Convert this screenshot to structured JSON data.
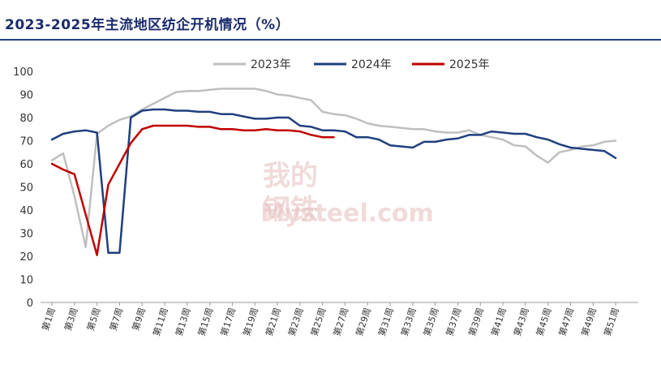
{
  "title": "2023-2025年主流地区纺企开机情况（%）",
  "chart_data": {
    "type": "line",
    "title": "2023-2025年主流地区纺企开机情况（%）",
    "xlabel": "",
    "ylabel": "",
    "ylim": [
      0,
      100
    ],
    "yticks": [
      0,
      10,
      20,
      30,
      40,
      50,
      60,
      70,
      80,
      90,
      100
    ],
    "legend_position": "top-center",
    "grid": false,
    "categories": [
      "第1周",
      "第2周",
      "第3周",
      "第4周",
      "第5周",
      "第6周",
      "第7周",
      "第8周",
      "第9周",
      "第10周",
      "第11周",
      "第12周",
      "第13周",
      "第14周",
      "第15周",
      "第16周",
      "第17周",
      "第18周",
      "第19周",
      "第20周",
      "第21周",
      "第22周",
      "第23周",
      "第24周",
      "第25周",
      "第26周",
      "第27周",
      "第28周",
      "第29周",
      "第30周",
      "第31周",
      "第32周",
      "第33周",
      "第34周",
      "第35周",
      "第36周",
      "第37周",
      "第38周",
      "第39周",
      "第40周",
      "第41周",
      "第42周",
      "第43周",
      "第44周",
      "第45周",
      "第46周",
      "第47周",
      "第48周",
      "第49周",
      "第50周",
      "第51周",
      "第52周"
    ],
    "xtick_labels": [
      "第1周",
      "第3周",
      "第5周",
      "第7周",
      "第9周",
      "第11周",
      "第13周",
      "第15周",
      "第17周",
      "第19周",
      "第21周",
      "第23周",
      "第25周",
      "第27周",
      "第29周",
      "第31周",
      "第33周",
      "第35周",
      "第37周",
      "第39周",
      "第41周",
      "第43周",
      "第45周",
      "第47周",
      "第49周",
      "第51周"
    ],
    "series": [
      {
        "name": "2023年",
        "color": "#bfbfbf",
        "values": [
          61.5,
          64.5,
          46,
          24,
          73,
          76.5,
          79,
          80.5,
          83.5,
          86,
          88.5,
          91,
          91.5,
          91.5,
          92,
          92.5,
          92.5,
          92.5,
          92.5,
          91.5,
          90,
          89.5,
          88.5,
          87.5,
          82.5,
          81.5,
          81,
          79.5,
          77.5,
          76.5,
          76,
          75.5,
          75,
          75,
          74,
          73.5,
          73.5,
          74.5,
          72.5,
          71.5,
          70.5,
          68,
          67.5,
          63.5,
          60.5,
          65,
          66,
          67.5,
          68,
          69.5,
          70,
          null
        ]
      },
      {
        "name": "2024年",
        "color": "#1f3f7f",
        "values": [
          70.5,
          73,
          74,
          74.5,
          73.5,
          21.5,
          21.5,
          80,
          83,
          83.5,
          83.5,
          83,
          83,
          82.5,
          82.5,
          81.5,
          81.5,
          80.5,
          79.5,
          79.5,
          80,
          80,
          76.5,
          76,
          74.5,
          74.5,
          74,
          71.5,
          71.5,
          70.5,
          68,
          67.5,
          67,
          69.5,
          69.5,
          70.5,
          71,
          72.5,
          72.5,
          74,
          73.5,
          73,
          73,
          71.5,
          70.5,
          68.5,
          67,
          66.5,
          66,
          65.5,
          62.5,
          null
        ]
      },
      {
        "name": "2025年",
        "color": "#c00000",
        "values": [
          60,
          57.5,
          55.5,
          38,
          20.5,
          51,
          60,
          69,
          75,
          76.5,
          76.5,
          76.5,
          76.5,
          76,
          76,
          75,
          75,
          74.5,
          74.5,
          75,
          74.5,
          74.5,
          74,
          72.5,
          71.5,
          71.5,
          null,
          null,
          null,
          null,
          null,
          null,
          null,
          null,
          null,
          null,
          null,
          null,
          null,
          null,
          null,
          null,
          null,
          null,
          null,
          null,
          null,
          null,
          null,
          null,
          null,
          null
        ]
      }
    ]
  }
}
